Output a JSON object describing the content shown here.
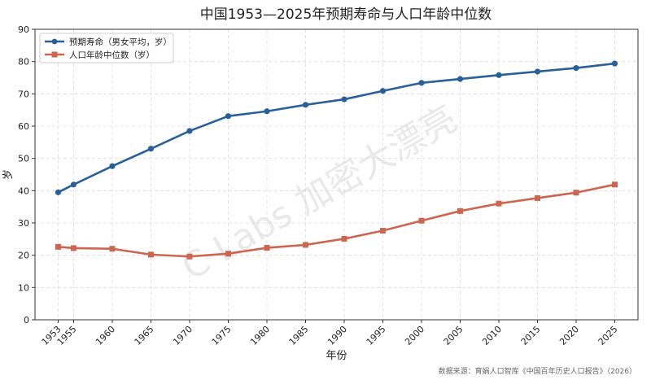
{
  "chart_data": {
    "type": "line",
    "title": "中国1953—2025年预期寿命与人口年龄中位数",
    "xlabel": "年份",
    "ylabel": "岁",
    "ylim": [
      0,
      90
    ],
    "yticks": [
      0,
      10,
      20,
      30,
      40,
      50,
      60,
      70,
      80,
      90
    ],
    "grid": true,
    "legend_position": "top-left",
    "x": [
      1953,
      1955,
      1960,
      1965,
      1970,
      1975,
      1980,
      1985,
      1990,
      1995,
      2000,
      2005,
      2010,
      2015,
      2020,
      2025
    ],
    "series": [
      {
        "name": "预期寿命（男女平均，岁）",
        "color": "#2a6099",
        "marker": "circle",
        "values": [
          39.5,
          41.9,
          47.6,
          53.0,
          58.5,
          63.1,
          64.6,
          66.6,
          68.3,
          70.9,
          73.4,
          74.6,
          75.8,
          76.9,
          78.0,
          79.4
        ]
      },
      {
        "name": "人口年龄中位数（岁）",
        "color": "#cd6650",
        "marker": "square",
        "values": [
          22.6,
          22.2,
          22.0,
          20.2,
          19.6,
          20.5,
          22.3,
          23.2,
          25.1,
          27.6,
          30.7,
          33.7,
          36.0,
          37.7,
          39.4,
          41.9
        ]
      }
    ],
    "source": "数据来源：育娲人口智库《中国百年历史人口报告》（2026）",
    "watermark": "C Labs 加密大漂亮"
  }
}
